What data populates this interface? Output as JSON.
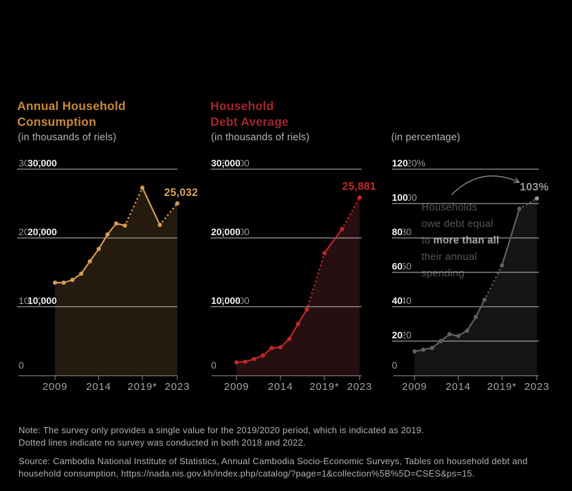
{
  "page": {
    "background": "#000000"
  },
  "chart_data": [
    {
      "type": "line",
      "title": "Annual Household\nConsumption",
      "title_color": "#c8883c",
      "subtitle": "(in thousands of riels)",
      "line_color": "#d49a52",
      "fill_color": "#241a0e",
      "end_label": "25,032",
      "end_label_color": "#dda25a",
      "x": [
        2009,
        2010,
        2011,
        2012,
        2013,
        2014,
        2015,
        2016,
        2017,
        2019,
        2021,
        2023
      ],
      "values": [
        13500,
        13500,
        13900,
        14800,
        16600,
        18400,
        20500,
        22100,
        21800,
        27300,
        21900,
        25032
      ],
      "ylim": [
        0,
        30000
      ],
      "grid": true,
      "legend": "none",
      "segments": [
        {
          "from": 2009,
          "to": 2017,
          "style": "solid"
        },
        {
          "from": 2017,
          "to": 2019,
          "style": "dotted"
        },
        {
          "from": 2019,
          "to": 2021,
          "style": "solid"
        },
        {
          "from": 2021,
          "to": 2023,
          "style": "dotted"
        }
      ],
      "y_ticks": [
        {
          "value": 30000,
          "bold": "30,000",
          "gray": "30,000"
        },
        {
          "value": 20000,
          "bold": "20,000",
          "gray": "20,000"
        },
        {
          "value": 10000,
          "bold": "10,000",
          "gray": "10,000"
        }
      ],
      "y_zero_label": "0",
      "x_ticks": [
        {
          "year": 2009,
          "label": "2009"
        },
        {
          "year": 2014,
          "label": "2014"
        },
        {
          "year": 2019,
          "label": "2019*"
        },
        {
          "year": 2023,
          "label": "2023"
        }
      ]
    },
    {
      "type": "line",
      "title": "Household\nDebt Average",
      "title_color": "#a2262b",
      "subtitle": "(in thousands of riels)",
      "line_color": "#c1272a",
      "fill_color": "#260f11",
      "end_label": "25,881",
      "end_label_color": "#c42a2c",
      "x": [
        2009,
        2010,
        2011,
        2012,
        2013,
        2014,
        2015,
        2016,
        2017,
        2019,
        2021,
        2023
      ],
      "values": [
        1900,
        2000,
        2400,
        2900,
        4000,
        4100,
        5300,
        7500,
        9600,
        17800,
        21300,
        25881
      ],
      "ylim": [
        0,
        30000
      ],
      "grid": true,
      "legend": "none",
      "segments": [
        {
          "from": 2009,
          "to": 2017,
          "style": "solid"
        },
        {
          "from": 2017,
          "to": 2019,
          "style": "dotted"
        },
        {
          "from": 2019,
          "to": 2021,
          "style": "solid"
        },
        {
          "from": 2021,
          "to": 2023,
          "style": "dotted"
        }
      ],
      "y_ticks": [
        {
          "value": 30000,
          "bold": "30,000",
          "gray": "30,000"
        },
        {
          "value": 20000,
          "bold": "20,000",
          "gray": "20,000"
        },
        {
          "value": 10000,
          "bold": "10,000",
          "gray": "10,000"
        }
      ],
      "y_zero_label": "0",
      "x_ticks": [
        {
          "year": 2009,
          "label": "2009"
        },
        {
          "year": 2014,
          "label": "2014"
        },
        {
          "year": 2019,
          "label": "2019*"
        },
        {
          "year": 2023,
          "label": "2023"
        }
      ]
    },
    {
      "type": "line",
      "title": "",
      "title_color": "#b5b5b5",
      "subtitle": "(in percentage)",
      "line_color": "#5f5f5f",
      "fill_color": "#151515",
      "end_label": "103%",
      "end_label_color": "#969696",
      "end_dot_color": "#949494",
      "x": [
        2009,
        2010,
        2011,
        2012,
        2013,
        2014,
        2015,
        2016,
        2017,
        2019,
        2021,
        2023
      ],
      "values": [
        14,
        15,
        16,
        20,
        24,
        23,
        26,
        34,
        44,
        64,
        97,
        103
      ],
      "ylim": [
        0,
        120
      ],
      "grid": true,
      "legend": "none",
      "segments": [
        {
          "from": 2009,
          "to": 2017,
          "style": "solid"
        },
        {
          "from": 2017,
          "to": 2019,
          "style": "dotted"
        },
        {
          "from": 2019,
          "to": 2021,
          "style": "solid"
        },
        {
          "from": 2021,
          "to": 2023,
          "style": "dotted"
        }
      ],
      "y_ticks": [
        {
          "value": 120,
          "bold": "120",
          "gray": "120%"
        },
        {
          "value": 100,
          "bold": "100",
          "gray": "100"
        },
        {
          "value": 80,
          "bold": "80",
          "gray": "80"
        },
        {
          "value": 60,
          "bold": "60",
          "gray": "60"
        },
        {
          "value": 40,
          "bold": "40",
          "gray": "40"
        },
        {
          "value": 20,
          "bold": "20",
          "gray": "20"
        }
      ],
      "y_zero_label": "0",
      "x_ticks": [
        {
          "year": 2009,
          "label": "2009"
        },
        {
          "year": 2014,
          "label": "2014"
        },
        {
          "year": 2019,
          "label": "2019*"
        },
        {
          "year": 2023,
          "label": "2023"
        }
      ],
      "annotation": {
        "lines": [
          {
            "text": "Households"
          },
          {
            "text": "owe debt equal"
          },
          {
            "text": "to ",
            "bold": "more than all"
          },
          {
            "text": "their annual"
          },
          {
            "text": "spending"
          }
        ]
      }
    }
  ],
  "notes": {
    "line1": "Note: The survey only provides a single value for the 2019/2020 period, which is indicated as 2019.",
    "line2": "Dotted lines indicate no survey was conducted in both 2018 and 2022.",
    "source_line1": "Source: Cambodia National Institute of Statistics, Annual Cambodia Socio-Economic Surveys, Tables on household debt and",
    "source_line2": "household consumption, https://nada.nis.gov.kh/index.php/catalog/?page=1&collection%5B%5D=CSES&ps=15."
  }
}
